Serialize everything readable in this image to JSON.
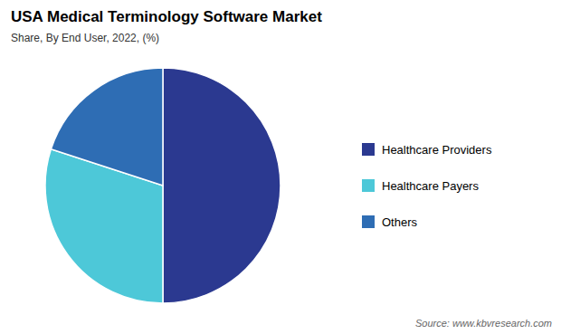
{
  "chart_data": {
    "type": "pie",
    "title": "USA Medical Terminology Software Market",
    "subtitle": "Share, By End User, 2022, (%)",
    "source": "Source: www.kbvresearch.com",
    "categories": [
      "Healthcare Providers",
      "Healthcare Payers",
      "Others"
    ],
    "values": [
      50,
      30,
      20
    ],
    "colors": [
      "#2b3990",
      "#4dc8d8",
      "#2e6db4"
    ],
    "legend": "right"
  }
}
